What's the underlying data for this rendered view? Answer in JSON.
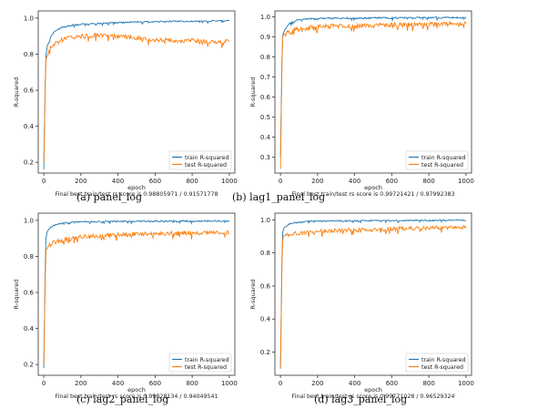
{
  "captions": [
    "(a) panel_log",
    "(b) lag1_panel_log",
    "(c) lag2_panel_log",
    "(d) lag3_panel_log"
  ],
  "chart_data": [
    {
      "type": "line",
      "xlabel": "epoch",
      "ylabel": "R-squared",
      "xticks": [
        0,
        200,
        400,
        600,
        800,
        1000
      ],
      "yticks": [
        0.2,
        0.4,
        0.6,
        0.8,
        1.0
      ],
      "xlim": [
        -30,
        1030
      ],
      "ylim": [
        0.14,
        1.04
      ],
      "legend_position": "bottom-right",
      "footer": "Final best train/test rs score is 0.98805971 /  0.91571778",
      "series": [
        {
          "name": "train R-squared",
          "color": "#1f77b4",
          "x": [
            0,
            10,
            20,
            40,
            60,
            100,
            150,
            200,
            300,
            400,
            500,
            600,
            700,
            800,
            900,
            1000
          ],
          "values": [
            0.16,
            0.78,
            0.85,
            0.9,
            0.93,
            0.95,
            0.96,
            0.965,
            0.97,
            0.975,
            0.978,
            0.98,
            0.982,
            0.983,
            0.984,
            0.985
          ]
        },
        {
          "name": "test R-squared",
          "color": "#ff7f0e",
          "x": [
            0,
            10,
            20,
            40,
            60,
            100,
            150,
            200,
            300,
            400,
            500,
            600,
            700,
            800,
            900,
            1000
          ],
          "values": [
            0.2,
            0.76,
            0.8,
            0.84,
            0.86,
            0.88,
            0.895,
            0.9,
            0.905,
            0.9,
            0.89,
            0.88,
            0.875,
            0.875,
            0.87,
            0.87
          ]
        }
      ]
    },
    {
      "type": "line",
      "xlabel": "epoch",
      "ylabel": "R-squared",
      "xticks": [
        0,
        200,
        400,
        600,
        800,
        1000
      ],
      "yticks": [
        0.3,
        0.4,
        0.5,
        0.6,
        0.7,
        0.8,
        0.9,
        1.0
      ],
      "xlim": [
        -30,
        1030
      ],
      "ylim": [
        0.22,
        1.03
      ],
      "legend_position": "bottom-right",
      "footer": "Final best train/test rs score is 0.99721421 /  0.97992383",
      "series": [
        {
          "name": "train R-squared",
          "color": "#1f77b4",
          "x": [
            0,
            10,
            20,
            40,
            60,
            100,
            150,
            200,
            300,
            400,
            500,
            600,
            700,
            800,
            900,
            1000
          ],
          "values": [
            0.3,
            0.9,
            0.93,
            0.96,
            0.975,
            0.985,
            0.99,
            0.992,
            0.993,
            0.994,
            0.995,
            0.995,
            0.996,
            0.996,
            0.997,
            0.997
          ]
        },
        {
          "name": "test R-squared",
          "color": "#ff7f0e",
          "x": [
            0,
            10,
            20,
            40,
            60,
            100,
            150,
            200,
            300,
            400,
            500,
            600,
            700,
            800,
            900,
            1000
          ],
          "values": [
            0.24,
            0.89,
            0.91,
            0.92,
            0.93,
            0.94,
            0.945,
            0.95,
            0.955,
            0.955,
            0.958,
            0.96,
            0.96,
            0.962,
            0.963,
            0.965
          ]
        }
      ]
    },
    {
      "type": "line",
      "xlabel": "epoch",
      "ylabel": "R-squared",
      "xticks": [
        0,
        200,
        400,
        600,
        800,
        1000
      ],
      "yticks": [
        0.2,
        0.4,
        0.6,
        0.8,
        1.0
      ],
      "xlim": [
        -30,
        1030
      ],
      "ylim": [
        0.14,
        1.04
      ],
      "legend_position": "bottom-right",
      "footer": "Final best train/test rs score is 0.99828134 /  0.94049541",
      "series": [
        {
          "name": "train R-squared",
          "color": "#1f77b4",
          "x": [
            0,
            10,
            20,
            40,
            60,
            100,
            150,
            200,
            300,
            400,
            500,
            600,
            700,
            800,
            900,
            1000
          ],
          "values": [
            0.18,
            0.9,
            0.94,
            0.965,
            0.975,
            0.985,
            0.99,
            0.992,
            0.993,
            0.994,
            0.995,
            0.995,
            0.996,
            0.996,
            0.997,
            0.997
          ]
        },
        {
          "name": "test R-squared",
          "color": "#ff7f0e",
          "x": [
            0,
            10,
            20,
            40,
            60,
            100,
            150,
            200,
            300,
            400,
            500,
            600,
            700,
            800,
            900,
            1000
          ],
          "values": [
            0.2,
            0.83,
            0.85,
            0.87,
            0.88,
            0.89,
            0.9,
            0.91,
            0.915,
            0.92,
            0.925,
            0.925,
            0.928,
            0.93,
            0.93,
            0.93
          ]
        }
      ]
    },
    {
      "type": "line",
      "xlabel": "epoch",
      "ylabel": "R-squared",
      "xticks": [
        0,
        200,
        400,
        600,
        800,
        1000
      ],
      "yticks": [
        0.2,
        0.4,
        0.6,
        0.8,
        1.0
      ],
      "xlim": [
        -30,
        1030
      ],
      "ylim": [
        0.06,
        1.04
      ],
      "legend_position": "bottom-right",
      "footer": "Final best train/test rs score is 0.99771028 /  0.96529324",
      "series": [
        {
          "name": "train R-squared",
          "color": "#1f77b4",
          "x": [
            0,
            10,
            20,
            40,
            60,
            100,
            150,
            200,
            300,
            400,
            500,
            600,
            700,
            800,
            900,
            1000
          ],
          "values": [
            0.1,
            0.92,
            0.95,
            0.97,
            0.98,
            0.985,
            0.99,
            0.992,
            0.993,
            0.994,
            0.995,
            0.995,
            0.996,
            0.996,
            0.997,
            0.997
          ]
        },
        {
          "name": "test R-squared",
          "color": "#ff7f0e",
          "x": [
            0,
            10,
            20,
            40,
            60,
            100,
            150,
            200,
            300,
            400,
            500,
            600,
            700,
            800,
            900,
            1000
          ],
          "values": [
            0.1,
            0.88,
            0.9,
            0.91,
            0.915,
            0.92,
            0.925,
            0.93,
            0.935,
            0.94,
            0.94,
            0.945,
            0.948,
            0.95,
            0.952,
            0.955
          ]
        }
      ]
    }
  ]
}
